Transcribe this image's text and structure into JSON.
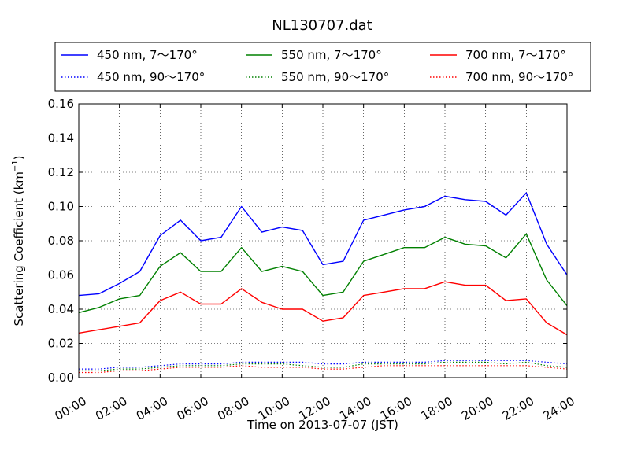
{
  "chart_data": {
    "type": "line",
    "title": "NL130707.dat",
    "xlabel": "Time on 2013-07-07 (JST)",
    "ylabel": "Scattering Coefficient (km",
    "ylabel_exp": "−1",
    "ylabel_close": ")",
    "xlim": [
      "00:00",
      "24:00"
    ],
    "ylim": [
      0,
      0.16
    ],
    "grid": true,
    "legend_position": "top",
    "x_ticks": [
      "00:00",
      "02:00",
      "04:00",
      "06:00",
      "08:00",
      "10:00",
      "12:00",
      "14:00",
      "16:00",
      "18:00",
      "20:00",
      "22:00",
      "24:00"
    ],
    "y_ticks": [
      "0.00",
      "0.02",
      "0.04",
      "0.06",
      "0.08",
      "0.10",
      "0.12",
      "0.14",
      "0.16"
    ],
    "x": [
      "00:00",
      "01:00",
      "02:00",
      "03:00",
      "04:00",
      "05:00",
      "06:00",
      "07:00",
      "08:00",
      "09:00",
      "10:00",
      "11:00",
      "12:00",
      "13:00",
      "14:00",
      "15:00",
      "16:00",
      "17:00",
      "18:00",
      "19:00",
      "20:00",
      "21:00",
      "22:00",
      "23:00",
      "24:00"
    ],
    "series": [
      {
        "name": "450 nm, 7～170°",
        "color": "#0000ff",
        "style": "solid",
        "values": [
          0.048,
          0.049,
          0.055,
          0.062,
          0.083,
          0.092,
          0.08,
          0.082,
          0.1,
          0.085,
          0.088,
          0.086,
          0.066,
          0.068,
          0.092,
          0.095,
          0.098,
          0.1,
          0.106,
          0.104,
          0.103,
          0.095,
          0.108,
          0.078,
          0.06
        ]
      },
      {
        "name": "550 nm, 7～170°",
        "color": "#008000",
        "style": "solid",
        "values": [
          0.038,
          0.041,
          0.046,
          0.048,
          0.065,
          0.073,
          0.062,
          0.062,
          0.076,
          0.062,
          0.065,
          0.062,
          0.048,
          0.05,
          0.068,
          0.072,
          0.076,
          0.076,
          0.082,
          0.078,
          0.077,
          0.07,
          0.084,
          0.057,
          0.042
        ]
      },
      {
        "name": "700 nm, 7～170°",
        "color": "#ff0000",
        "style": "solid",
        "values": [
          0.026,
          0.028,
          0.03,
          0.032,
          0.045,
          0.05,
          0.043,
          0.043,
          0.052,
          0.044,
          0.04,
          0.04,
          0.033,
          0.035,
          0.048,
          0.05,
          0.052,
          0.052,
          0.056,
          0.054,
          0.054,
          0.045,
          0.046,
          0.032,
          0.025
        ]
      },
      {
        "name": "450 nm, 90～170°",
        "color": "#0000ff",
        "style": "dotted",
        "values": [
          0.005,
          0.005,
          0.006,
          0.006,
          0.007,
          0.008,
          0.008,
          0.008,
          0.009,
          0.009,
          0.009,
          0.009,
          0.008,
          0.008,
          0.009,
          0.009,
          0.009,
          0.009,
          0.01,
          0.01,
          0.01,
          0.01,
          0.01,
          0.009,
          0.008
        ]
      },
      {
        "name": "550 nm, 90～170°",
        "color": "#008000",
        "style": "dotted",
        "values": [
          0.004,
          0.004,
          0.005,
          0.005,
          0.006,
          0.007,
          0.007,
          0.007,
          0.008,
          0.008,
          0.008,
          0.007,
          0.006,
          0.006,
          0.008,
          0.008,
          0.008,
          0.008,
          0.009,
          0.009,
          0.009,
          0.008,
          0.009,
          0.007,
          0.006
        ]
      },
      {
        "name": "700 nm, 90～170°",
        "color": "#ff0000",
        "style": "dotted",
        "values": [
          0.003,
          0.003,
          0.004,
          0.004,
          0.005,
          0.006,
          0.006,
          0.006,
          0.007,
          0.006,
          0.006,
          0.006,
          0.005,
          0.005,
          0.006,
          0.007,
          0.007,
          0.007,
          0.007,
          0.007,
          0.007,
          0.007,
          0.007,
          0.006,
          0.005
        ]
      }
    ]
  }
}
